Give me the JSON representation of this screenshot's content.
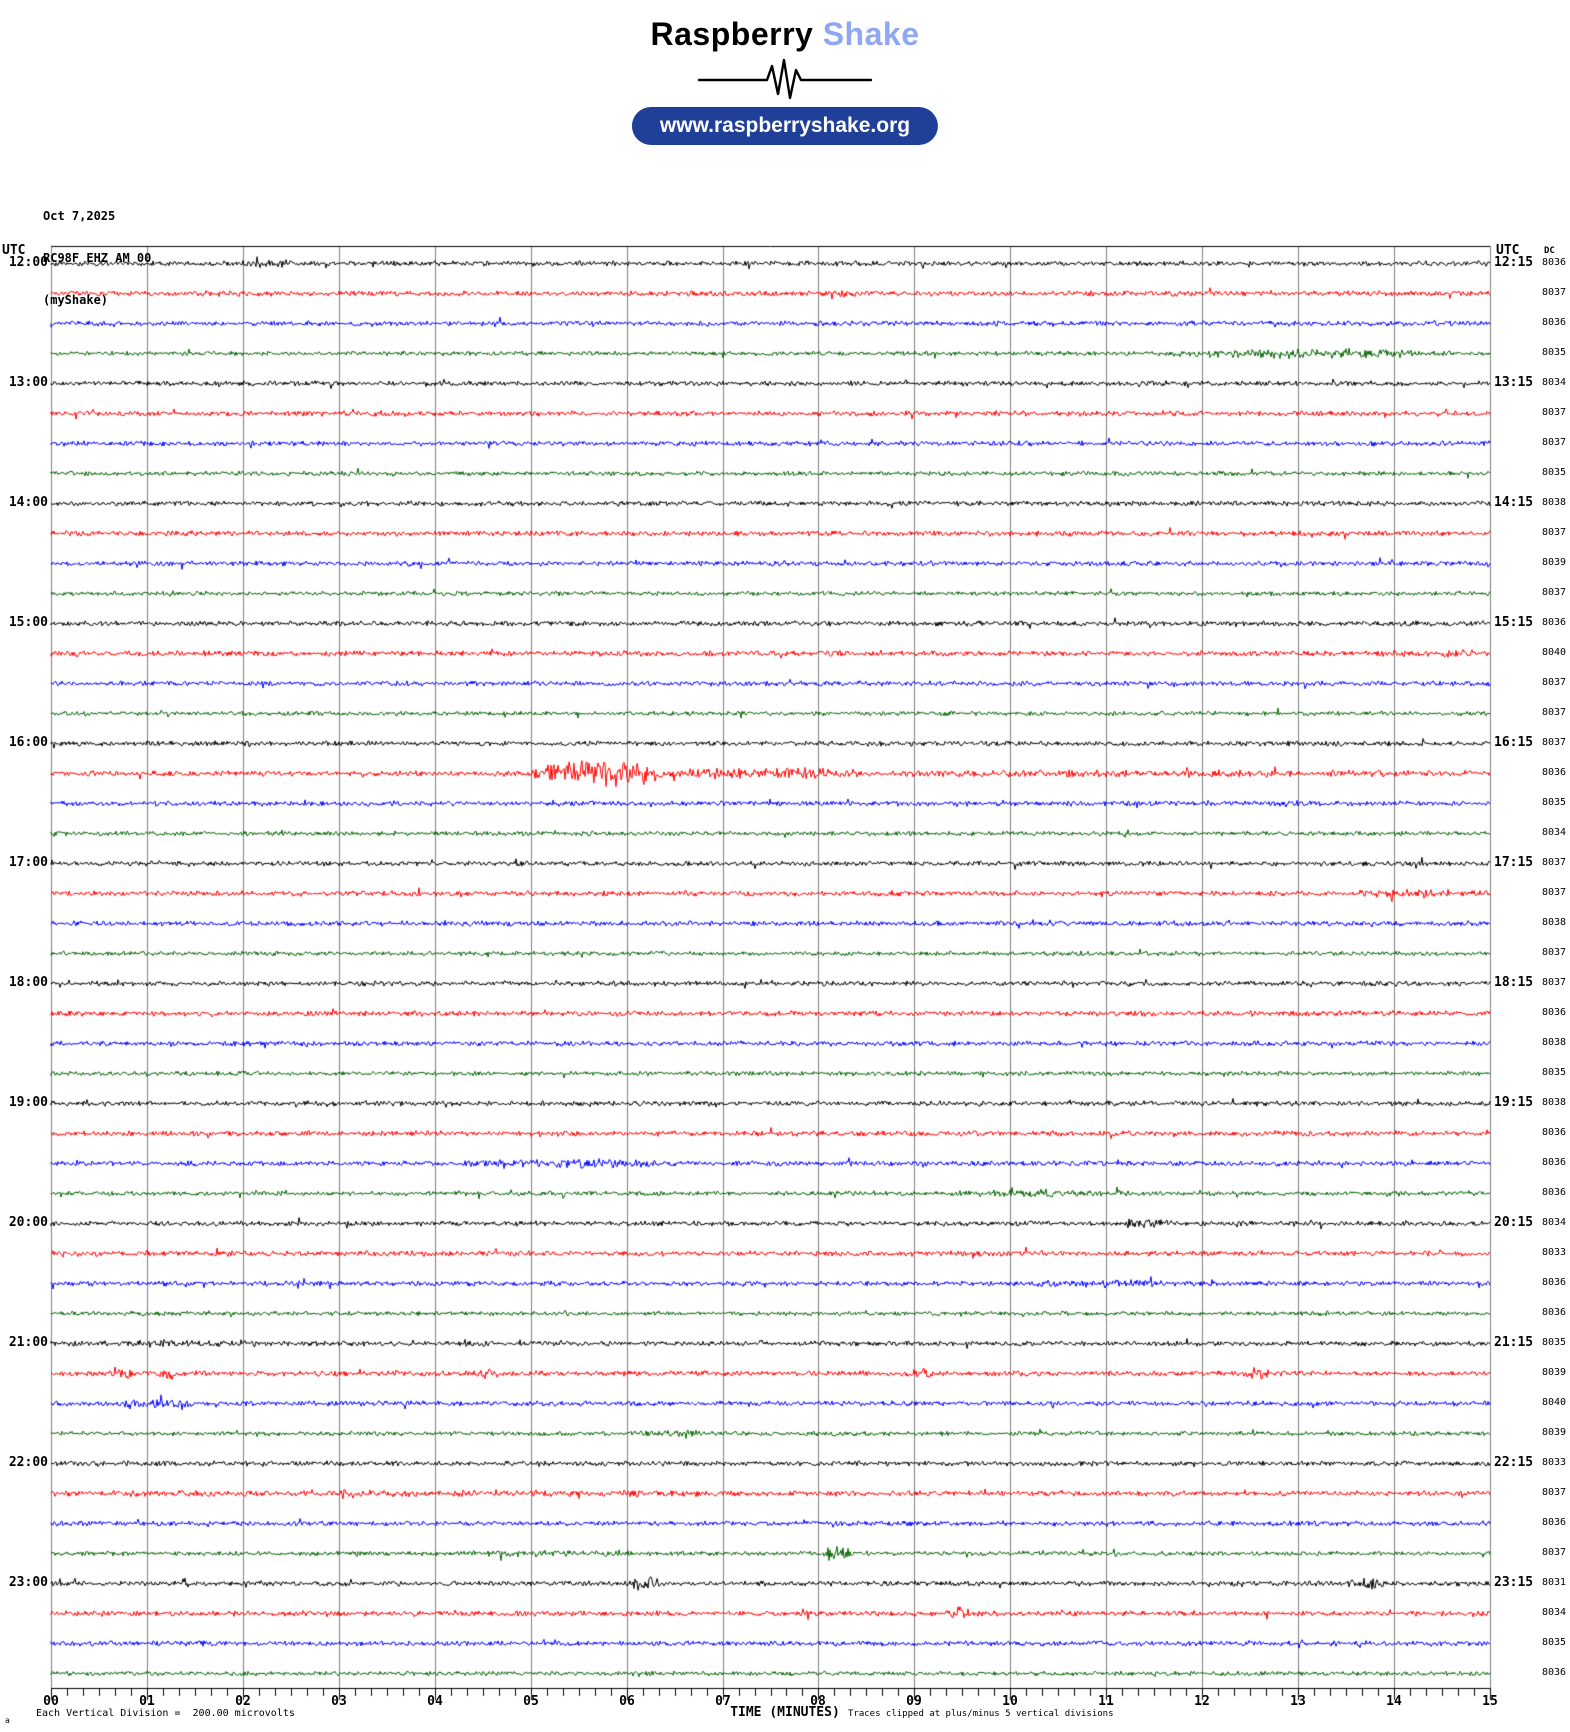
{
  "header": {
    "brand_black": "Raspberry",
    "brand_blue": "Shake",
    "brand_blue_color": "#8fa7f3",
    "url": "www.raspberryshake.org",
    "pill_color": "#203f99"
  },
  "station": {
    "date": "Oct 7,2025",
    "code": "RC98F EHZ AM 00",
    "network": "(myShake)"
  },
  "axes": {
    "utc_left": "UTC",
    "utc_right": "UTC",
    "dc_header": "DC"
  },
  "footer": {
    "tiny": "a",
    "division_note": "Each Vertical Division =  200.00 microvolts",
    "time_label": "TIME (MINUTES)",
    "clip_note": "Traces clipped at plus/minus 5 vertical divisions"
  },
  "chart_data": {
    "type": "line",
    "subtype": "helicorder",
    "title": "RC98F EHZ AM 00 (myShake) webicorder, Oct 7,2025",
    "xlabel": "TIME (MINUTES)",
    "x_range_minutes": [
      0,
      15
    ],
    "x_major_tick_labels": [
      "00",
      "01",
      "02",
      "03",
      "04",
      "05",
      "06",
      "07",
      "08",
      "09",
      "10",
      "11",
      "12",
      "13",
      "14",
      "15"
    ],
    "x_minor_ticks_per_minute": 6,
    "grid": true,
    "grid_color": "#7f7f7f",
    "row_interval_minutes": 15,
    "rows_per_hour": 4,
    "start_time_utc": "12:00",
    "trace_color_cycle": [
      "#000000",
      "#ff0000",
      "#0000ff",
      "#006400"
    ],
    "left_time_labels": [
      "12:00",
      "13:00",
      "14:00",
      "15:00",
      "16:00",
      "17:00",
      "18:00",
      "19:00",
      "20:00",
      "21:00",
      "22:00",
      "23:00"
    ],
    "right_time_labels": [
      "12:15",
      "13:15",
      "14:15",
      "15:15",
      "16:15",
      "17:15",
      "18:15",
      "19:15",
      "20:15",
      "21:15",
      "22:15",
      "23:15"
    ],
    "dc_offsets": [
      8036,
      8037,
      8036,
      8035,
      8034,
      8037,
      8037,
      8035,
      8038,
      8037,
      8039,
      8037,
      8036,
      8040,
      8037,
      8037,
      8037,
      8036,
      8035,
      8034,
      8037,
      8037,
      8038,
      8037,
      8037,
      8036,
      8038,
      8035,
      8038,
      8036,
      8036,
      8036,
      8034,
      8033,
      8036,
      8036,
      8035,
      8039,
      8040,
      8039,
      8033,
      8037,
      8036,
      8037,
      8031,
      8034,
      8035,
      8036
    ],
    "events": [
      {
        "row": 0,
        "start_min": 1.8,
        "end_min": 2.6,
        "amp": 1.6
      },
      {
        "row": 3,
        "start_min": 11.6,
        "end_min": 14.6,
        "amp": 2.3
      },
      {
        "row": 13,
        "start_min": 13.8,
        "end_min": 15,
        "amp": 1.5
      },
      {
        "row": 17,
        "start_min": 5.0,
        "end_min": 6.4,
        "amp": 5.5
      },
      {
        "row": 17,
        "start_min": 6.4,
        "end_min": 8.5,
        "amp": 2.3
      },
      {
        "row": 17,
        "start_min": 8.5,
        "end_min": 15,
        "amp": 1.4
      },
      {
        "row": 21,
        "start_min": 13.5,
        "end_min": 15,
        "amp": 1.6
      },
      {
        "row": 30,
        "start_min": 4.3,
        "end_min": 6.3,
        "amp": 1.9
      },
      {
        "row": 31,
        "start_min": 9.3,
        "end_min": 11.3,
        "amp": 1.7
      },
      {
        "row": 32,
        "start_min": 11.1,
        "end_min": 11.7,
        "amp": 2.0
      },
      {
        "row": 34,
        "start_min": 10.2,
        "end_min": 11.6,
        "amp": 1.7
      },
      {
        "row": 36,
        "start_min": 0.8,
        "end_min": 2.2,
        "amp": 1.6
      },
      {
        "row": 37,
        "start_min": 0.6,
        "end_min": 0.9,
        "amp": 3.0
      },
      {
        "row": 37,
        "start_min": 1.1,
        "end_min": 1.4,
        "amp": 2.6
      },
      {
        "row": 37,
        "start_min": 4.4,
        "end_min": 4.7,
        "amp": 2.4
      },
      {
        "row": 37,
        "start_min": 8.9,
        "end_min": 9.2,
        "amp": 2.2
      },
      {
        "row": 37,
        "start_min": 12.4,
        "end_min": 12.7,
        "amp": 2.4
      },
      {
        "row": 38,
        "start_min": 0.6,
        "end_min": 1.5,
        "amp": 2.2
      },
      {
        "row": 39,
        "start_min": 6.0,
        "end_min": 7.0,
        "amp": 1.6
      },
      {
        "row": 41,
        "start_min": 0.3,
        "end_min": 7.5,
        "amp": 1.3
      },
      {
        "row": 43,
        "start_min": 4.0,
        "end_min": 6.2,
        "amp": 1.5
      },
      {
        "row": 43,
        "start_min": 8.05,
        "end_min": 8.35,
        "amp": 3.5
      },
      {
        "row": 44,
        "start_min": 6.0,
        "end_min": 6.4,
        "amp": 2.8
      },
      {
        "row": 44,
        "start_min": 13.5,
        "end_min": 13.9,
        "amp": 2.2
      },
      {
        "row": 45,
        "start_min": 9.3,
        "end_min": 9.6,
        "amp": 3.2
      }
    ],
    "units_note": "Each Vertical Division =  200.00 microvolts",
    "clip_note": "Traces clipped at plus/minus 5 vertical divisions",
    "legend": "none"
  }
}
